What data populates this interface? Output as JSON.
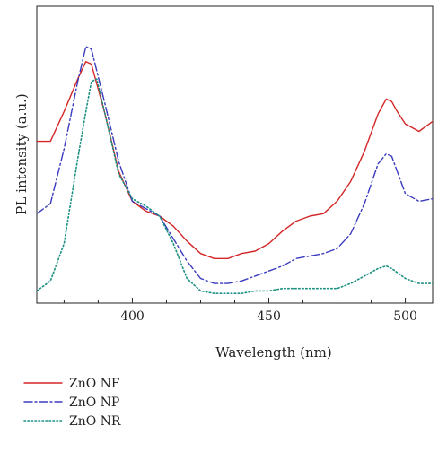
{
  "chart_data": {
    "type": "line",
    "title": "",
    "xlabel": "Wavelength (nm)",
    "ylabel": "PL intensity (a.u.)",
    "xlim": [
      365,
      510
    ],
    "ylim": [
      0,
      1
    ],
    "x_ticks": [
      400,
      450,
      500
    ],
    "x_tick_labels": [
      "400",
      "450",
      "500"
    ],
    "grid": false,
    "legend_position": "bottom-left",
    "series": [
      {
        "name": "ZnO NF",
        "color": "#d32626",
        "style": "solid",
        "x": [
          365,
          370,
          375,
          380,
          383,
          385,
          390,
          395,
          400,
          405,
          410,
          415,
          420,
          425,
          430,
          435,
          440,
          445,
          450,
          455,
          460,
          465,
          470,
          475,
          480,
          485,
          490,
          493,
          495,
          497,
          500,
          505,
          510
        ],
        "y": [
          0.62,
          0.62,
          0.74,
          0.87,
          0.94,
          0.93,
          0.73,
          0.5,
          0.38,
          0.34,
          0.32,
          0.28,
          0.22,
          0.17,
          0.15,
          0.15,
          0.17,
          0.18,
          0.21,
          0.26,
          0.3,
          0.32,
          0.33,
          0.38,
          0.46,
          0.58,
          0.73,
          0.79,
          0.78,
          0.74,
          0.69,
          0.66,
          0.7
        ]
      },
      {
        "name": "ZnO NP",
        "color": "#3b3bbf",
        "style": "dashdot",
        "x": [
          365,
          370,
          375,
          380,
          383,
          385,
          390,
          395,
          400,
          405,
          410,
          415,
          420,
          425,
          430,
          435,
          440,
          445,
          450,
          455,
          460,
          465,
          470,
          475,
          480,
          485,
          490,
          493,
          495,
          497,
          500,
          505,
          510
        ],
        "y": [
          0.33,
          0.37,
          0.59,
          0.86,
          1.0,
          0.99,
          0.77,
          0.54,
          0.38,
          0.35,
          0.32,
          0.23,
          0.14,
          0.07,
          0.05,
          0.05,
          0.06,
          0.08,
          0.1,
          0.12,
          0.15,
          0.16,
          0.17,
          0.19,
          0.25,
          0.37,
          0.53,
          0.57,
          0.56,
          0.5,
          0.41,
          0.38,
          0.39
        ]
      },
      {
        "name": "ZnO NR",
        "color": "#1a9080",
        "style": "dotted",
        "x": [
          365,
          370,
          375,
          380,
          383,
          385,
          387,
          390,
          395,
          400,
          405,
          410,
          415,
          420,
          425,
          430,
          435,
          440,
          445,
          450,
          455,
          460,
          465,
          470,
          475,
          480,
          485,
          490,
          493,
          495,
          500,
          505,
          510
        ],
        "y": [
          0.02,
          0.06,
          0.21,
          0.55,
          0.74,
          0.86,
          0.87,
          0.73,
          0.49,
          0.39,
          0.36,
          0.32,
          0.21,
          0.07,
          0.02,
          0.01,
          0.01,
          0.01,
          0.02,
          0.02,
          0.03,
          0.03,
          0.03,
          0.03,
          0.03,
          0.05,
          0.08,
          0.11,
          0.12,
          0.11,
          0.07,
          0.05,
          0.05
        ]
      }
    ]
  }
}
